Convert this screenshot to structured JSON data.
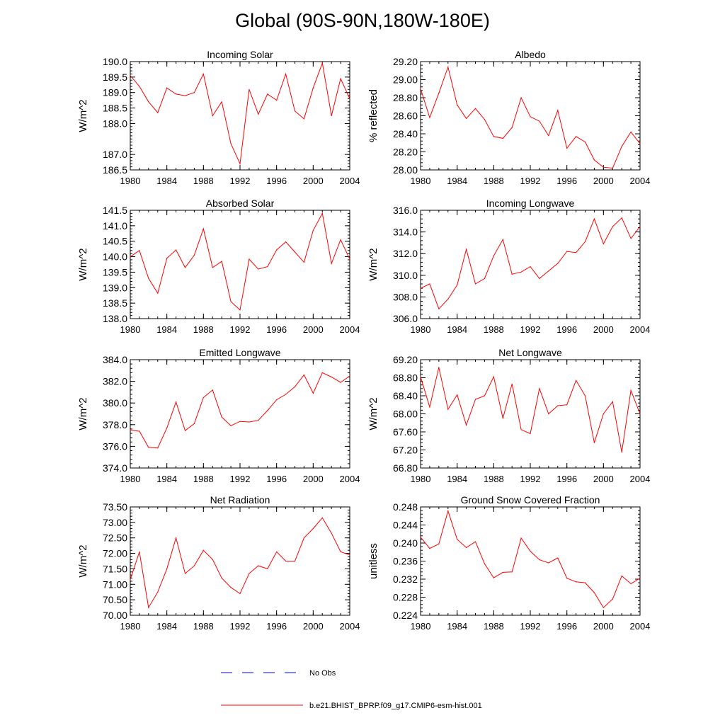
{
  "title": "Global (90S-90N,180W-180E)",
  "colors": {
    "model": "#ff0000",
    "obs": "#0000ff",
    "axis": "#000000"
  },
  "legend": {
    "obs_label": "No Obs",
    "model_label": "b.e21.BHIST_BPRP.f09_g17.CMIP6-esm-hist.001"
  },
  "chart_data": [
    {
      "type": "line",
      "title": "Incoming Solar",
      "ylabel": "W/m^2",
      "xlim": [
        1980,
        2004
      ],
      "ylim": [
        186.5,
        190.0
      ],
      "xticks": [
        1980,
        1984,
        1988,
        1992,
        1996,
        2000,
        2004
      ],
      "xtick_labels": [
        "1980",
        "1984",
        "1988",
        "1992",
        "1996",
        "2000",
        "2004"
      ],
      "yticks": [
        186.5,
        187.0,
        188.0,
        188.5,
        189.0,
        189.5,
        190.0
      ],
      "ytick_labels": [
        "186.5",
        "187.0",
        "188.0",
        "188.5",
        "189.0",
        "189.5",
        "190.0"
      ],
      "x": [
        1980,
        1981,
        1982,
        1983,
        1984,
        1985,
        1986,
        1987,
        1988,
        1989,
        1990,
        1991,
        1992,
        1993,
        1994,
        1995,
        1996,
        1997,
        1998,
        1999,
        2000,
        2001,
        2002,
        2003,
        2004
      ],
      "values": [
        189.55,
        189.2,
        188.7,
        188.35,
        189.15,
        188.95,
        188.9,
        189.0,
        189.6,
        188.25,
        188.7,
        187.35,
        186.7,
        189.1,
        188.3,
        188.95,
        188.75,
        189.6,
        188.4,
        188.15,
        189.15,
        189.95,
        188.25,
        189.45,
        188.8
      ]
    },
    {
      "type": "line",
      "title": "Albedo",
      "ylabel": "% reflected",
      "xlim": [
        1980,
        2004
      ],
      "ylim": [
        28.0,
        29.2
      ],
      "xticks": [
        1980,
        1984,
        1988,
        1992,
        1996,
        2000,
        2004
      ],
      "xtick_labels": [
        "1980",
        "1984",
        "1988",
        "1992",
        "1996",
        "2000",
        "2004"
      ],
      "yticks": [
        28.0,
        28.2,
        28.4,
        28.6,
        28.8,
        29.0,
        29.2
      ],
      "ytick_labels": [
        "28.00",
        "28.20",
        "28.40",
        "28.60",
        "28.80",
        "29.00",
        "29.20"
      ],
      "x": [
        1980,
        1981,
        1982,
        1983,
        1984,
        1985,
        1986,
        1987,
        1988,
        1989,
        1990,
        1991,
        1992,
        1993,
        1994,
        1995,
        1996,
        1997,
        1998,
        1999,
        2000,
        2001,
        2002,
        2003,
        2004
      ],
      "values": [
        28.9,
        28.58,
        28.85,
        29.14,
        28.72,
        28.57,
        28.68,
        28.56,
        28.37,
        28.35,
        28.47,
        28.8,
        28.59,
        28.54,
        28.38,
        28.66,
        28.24,
        28.37,
        28.31,
        28.11,
        28.03,
        28.02,
        28.26,
        28.42,
        28.29
      ]
    },
    {
      "type": "line",
      "title": "Absorbed Solar",
      "ylabel": "W/m^2",
      "xlim": [
        1980,
        2004
      ],
      "ylim": [
        138.0,
        141.5
      ],
      "xticks": [
        1980,
        1984,
        1988,
        1992,
        1996,
        2000,
        2004
      ],
      "xtick_labels": [
        "1980",
        "1984",
        "1988",
        "1992",
        "1996",
        "2000",
        "2004"
      ],
      "yticks": [
        138.0,
        138.5,
        139.0,
        139.5,
        140.0,
        140.5,
        141.0,
        141.5
      ],
      "ytick_labels": [
        "138.0",
        "138.5",
        "139.0",
        "139.5",
        "140.0",
        "140.5",
        "141.0",
        "141.5"
      ],
      "x": [
        1980,
        1981,
        1982,
        1983,
        1984,
        1985,
        1986,
        1987,
        1988,
        1989,
        1990,
        1991,
        1992,
        1993,
        1994,
        1995,
        1996,
        1997,
        1998,
        1999,
        2000,
        2001,
        2002,
        2003,
        2004
      ],
      "values": [
        140.0,
        140.2,
        139.3,
        138.82,
        139.95,
        140.22,
        139.65,
        140.05,
        140.9,
        139.65,
        139.85,
        138.55,
        138.28,
        139.92,
        139.6,
        139.68,
        140.22,
        140.48,
        140.15,
        139.82,
        140.85,
        141.4,
        139.78,
        140.55,
        139.92
      ]
    },
    {
      "type": "line",
      "title": "Incoming Longwave",
      "ylabel": "W/m^2",
      "xlim": [
        1980,
        2004
      ],
      "ylim": [
        306.0,
        316.0
      ],
      "xticks": [
        1980,
        1984,
        1988,
        1992,
        1996,
        2000,
        2004
      ],
      "xtick_labels": [
        "1980",
        "1984",
        "1988",
        "1992",
        "1996",
        "2000",
        "2004"
      ],
      "yticks": [
        306.0,
        308.0,
        310.0,
        312.0,
        314.0,
        316.0
      ],
      "ytick_labels": [
        "306.0",
        "308.0",
        "310.0",
        "312.0",
        "314.0",
        "316.0"
      ],
      "x": [
        1980,
        1981,
        1982,
        1983,
        1984,
        1985,
        1986,
        1987,
        1988,
        1989,
        1990,
        1991,
        1992,
        1993,
        1994,
        1995,
        1996,
        1997,
        1998,
        1999,
        2000,
        2001,
        2002,
        2003,
        2004
      ],
      "values": [
        308.8,
        309.2,
        306.9,
        307.8,
        309.1,
        312.4,
        309.2,
        309.7,
        311.8,
        313.3,
        310.1,
        310.3,
        310.8,
        309.7,
        310.4,
        311.1,
        312.2,
        312.1,
        313.1,
        315.2,
        312.9,
        314.5,
        315.3,
        313.4,
        314.5
      ]
    },
    {
      "type": "line",
      "title": "Emitted Longwave",
      "ylabel": "W/m^2",
      "xlim": [
        1980,
        2004
      ],
      "ylim": [
        374.0,
        384.0
      ],
      "xticks": [
        1980,
        1984,
        1988,
        1992,
        1996,
        2000,
        2004
      ],
      "xtick_labels": [
        "1980",
        "1984",
        "1988",
        "1992",
        "1996",
        "2000",
        "2004"
      ],
      "yticks": [
        374.0,
        376.0,
        378.0,
        380.0,
        382.0,
        384.0
      ],
      "ytick_labels": [
        "374.0",
        "376.0",
        "378.0",
        "380.0",
        "382.0",
        "384.0"
      ],
      "x": [
        1980,
        1981,
        1982,
        1983,
        1984,
        1985,
        1986,
        1987,
        1988,
        1989,
        1990,
        1991,
        1992,
        1993,
        1994,
        1995,
        1996,
        1997,
        1998,
        1999,
        2000,
        2001,
        2002,
        2003,
        2004
      ],
      "values": [
        377.5,
        377.4,
        375.9,
        375.85,
        377.7,
        380.1,
        377.45,
        378.1,
        380.5,
        381.2,
        378.7,
        377.9,
        378.3,
        378.25,
        378.4,
        379.3,
        380.3,
        380.8,
        381.5,
        382.6,
        380.9,
        382.8,
        382.4,
        381.9,
        382.5
      ]
    },
    {
      "type": "line",
      "title": "Net Longwave",
      "ylabel": "W/m^2",
      "xlim": [
        1980,
        2004
      ],
      "ylim": [
        66.8,
        69.2
      ],
      "xticks": [
        1980,
        1984,
        1988,
        1992,
        1996,
        2000,
        2004
      ],
      "xtick_labels": [
        "1980",
        "1984",
        "1988",
        "1992",
        "1996",
        "2000",
        "2004"
      ],
      "yticks": [
        66.8,
        67.2,
        67.6,
        68.0,
        68.4,
        68.8,
        69.2
      ],
      "ytick_labels": [
        "66.80",
        "67.20",
        "67.60",
        "68.00",
        "68.40",
        "68.80",
        "69.20"
      ],
      "x": [
        1980,
        1981,
        1982,
        1983,
        1984,
        1985,
        1986,
        1987,
        1988,
        1989,
        1990,
        1991,
        1992,
        1993,
        1994,
        1995,
        1996,
        1997,
        1998,
        1999,
        2000,
        2001,
        2002,
        2003,
        2004
      ],
      "values": [
        68.82,
        68.15,
        69.03,
        68.1,
        68.42,
        67.75,
        68.32,
        68.4,
        68.82,
        67.9,
        68.66,
        67.65,
        67.56,
        68.56,
        68.0,
        68.18,
        68.2,
        68.74,
        68.4,
        67.36,
        68.0,
        68.27,
        67.15,
        68.52,
        68.0
      ]
    },
    {
      "type": "line",
      "title": "Net Radiation",
      "ylabel": "W/m^2",
      "xlim": [
        1980,
        2004
      ],
      "ylim": [
        70.0,
        73.5
      ],
      "xticks": [
        1980,
        1984,
        1988,
        1992,
        1996,
        2000,
        2004
      ],
      "xtick_labels": [
        "1980",
        "1984",
        "1988",
        "1992",
        "1996",
        "2000",
        "2004"
      ],
      "yticks": [
        70.0,
        70.5,
        71.0,
        71.5,
        72.0,
        72.5,
        73.0,
        73.5
      ],
      "ytick_labels": [
        "70.00",
        "70.50",
        "71.00",
        "71.50",
        "72.00",
        "72.50",
        "73.00",
        "73.50"
      ],
      "x": [
        1980,
        1981,
        1982,
        1983,
        1984,
        1985,
        1986,
        1987,
        1988,
        1989,
        1990,
        1991,
        1992,
        1993,
        1994,
        1995,
        1996,
        1997,
        1998,
        1999,
        2000,
        2001,
        2002,
        2003,
        2004
      ],
      "values": [
        71.15,
        72.05,
        70.25,
        70.75,
        71.5,
        72.5,
        71.35,
        71.6,
        72.1,
        71.8,
        71.2,
        70.9,
        70.7,
        71.35,
        71.6,
        71.5,
        72.05,
        71.75,
        71.75,
        72.5,
        72.8,
        73.15,
        72.65,
        72.05,
        71.95
      ]
    },
    {
      "type": "line",
      "title": "Ground Snow Covered Fraction",
      "ylabel": "unitless",
      "xlim": [
        1980,
        2004
      ],
      "ylim": [
        0.224,
        0.248
      ],
      "xticks": [
        1980,
        1984,
        1988,
        1992,
        1996,
        2000,
        2004
      ],
      "xtick_labels": [
        "1980",
        "1984",
        "1988",
        "1992",
        "1996",
        "2000",
        "2004"
      ],
      "yticks": [
        0.224,
        0.228,
        0.232,
        0.236,
        0.24,
        0.244,
        0.248
      ],
      "ytick_labels": [
        "0.224",
        "0.228",
        "0.232",
        "0.236",
        "0.240",
        "0.244",
        "0.248"
      ],
      "x": [
        1980,
        1981,
        1982,
        1983,
        1984,
        1985,
        1986,
        1987,
        1988,
        1989,
        1990,
        1991,
        1992,
        1993,
        1994,
        1995,
        1996,
        1997,
        1998,
        1999,
        2000,
        2001,
        2002,
        2003,
        2004
      ],
      "values": [
        0.2413,
        0.2388,
        0.2398,
        0.2471,
        0.2408,
        0.239,
        0.2403,
        0.2354,
        0.2323,
        0.2335,
        0.2336,
        0.2411,
        0.2382,
        0.2363,
        0.2356,
        0.2367,
        0.2322,
        0.2314,
        0.2312,
        0.229,
        0.2257,
        0.2276,
        0.2327,
        0.231,
        0.2322
      ]
    }
  ]
}
